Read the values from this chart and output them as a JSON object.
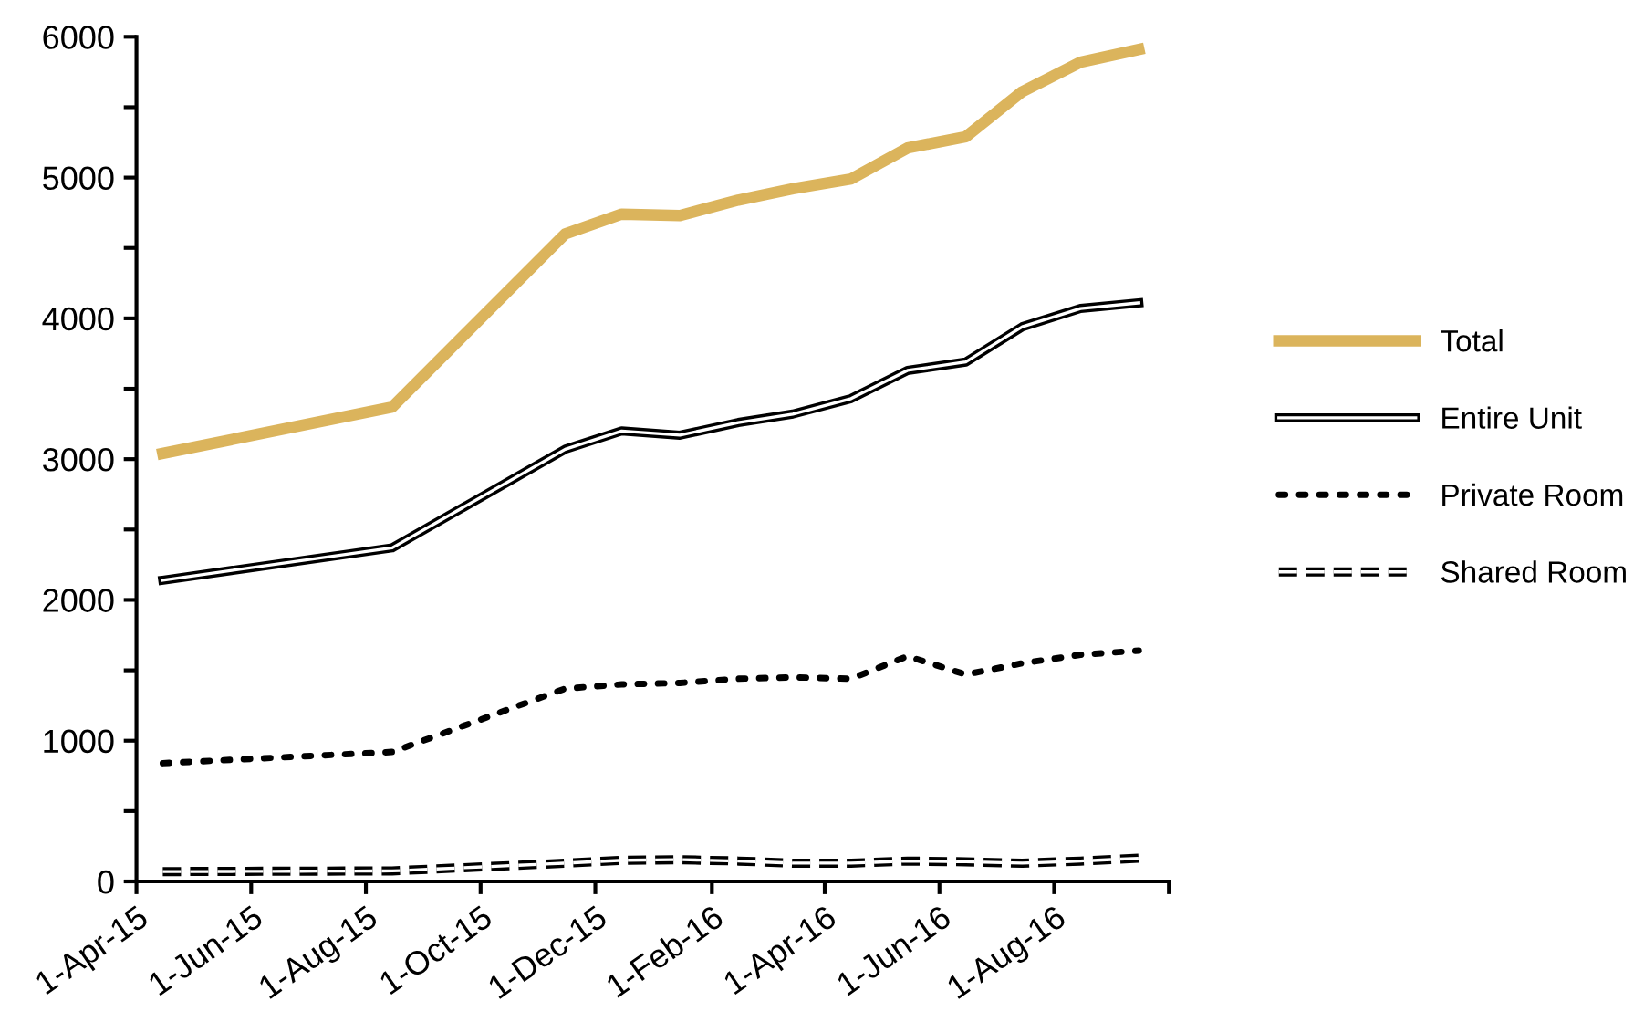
{
  "chart_data": {
    "type": "line",
    "x": [
      "2015-04-15",
      "2015-08-15",
      "2015-11-15",
      "2015-12-15",
      "2016-01-15",
      "2016-02-15",
      "2016-03-15",
      "2016-04-15",
      "2016-05-15",
      "2016-06-15",
      "2016-07-15",
      "2016-08-15",
      "2016-09-15"
    ],
    "series": [
      {
        "name": "Total",
        "color": "#dbb45c",
        "line_style": "solid",
        "values": [
          3040,
          3370,
          4600,
          4740,
          4730,
          4840,
          4920,
          4990,
          5210,
          5290,
          5610,
          5820,
          5910
        ]
      },
      {
        "name": "Entire Unit",
        "color": "#000000",
        "line_style": "solid",
        "values": [
          2140,
          2370,
          3070,
          3200,
          3170,
          3260,
          3320,
          3430,
          3630,
          3690,
          3940,
          4070,
          4110
        ]
      },
      {
        "name": "Private Room",
        "color": "#000000",
        "line_style": "dotted",
        "values": [
          840,
          920,
          1370,
          1400,
          1410,
          1440,
          1450,
          1440,
          1600,
          1470,
          1550,
          1610,
          1640
        ]
      },
      {
        "name": "Shared Room",
        "color": "#000000",
        "line_style": "dashed",
        "values": [
          70,
          75,
          130,
          150,
          155,
          145,
          130,
          130,
          145,
          140,
          130,
          145,
          165
        ]
      }
    ],
    "xlim": [
      "2015-04-01",
      "2016-10-01"
    ],
    "xticks": [
      {
        "value": "2015-04-01",
        "label": "1-Apr-15"
      },
      {
        "value": "2015-06-01",
        "label": "1-Jun-15"
      },
      {
        "value": "2015-08-01",
        "label": "1-Aug-15"
      },
      {
        "value": "2015-10-01",
        "label": "1-Oct-15"
      },
      {
        "value": "2015-12-01",
        "label": "1-Dec-15"
      },
      {
        "value": "2016-02-01",
        "label": "1-Feb-16"
      },
      {
        "value": "2016-04-01",
        "label": "1-Apr-16"
      },
      {
        "value": "2016-06-01",
        "label": "1-Jun-16"
      },
      {
        "value": "2016-08-01",
        "label": "1-Aug-16"
      },
      {
        "value": "2016-10-01",
        "label": null
      }
    ],
    "ylim": [
      0,
      6000
    ],
    "yticks": [
      0,
      {
        "value": 500,
        "label": null
      },
      1000,
      {
        "value": 1500,
        "label": null
      },
      2000,
      {
        "value": 2500,
        "label": null
      },
      3000,
      {
        "value": 3500,
        "label": null
      },
      4000,
      {
        "value": 4500,
        "label": null
      },
      5000,
      {
        "value": 5500,
        "label": null
      },
      6000
    ],
    "grid": false,
    "legend": "right",
    "marker": "none"
  }
}
